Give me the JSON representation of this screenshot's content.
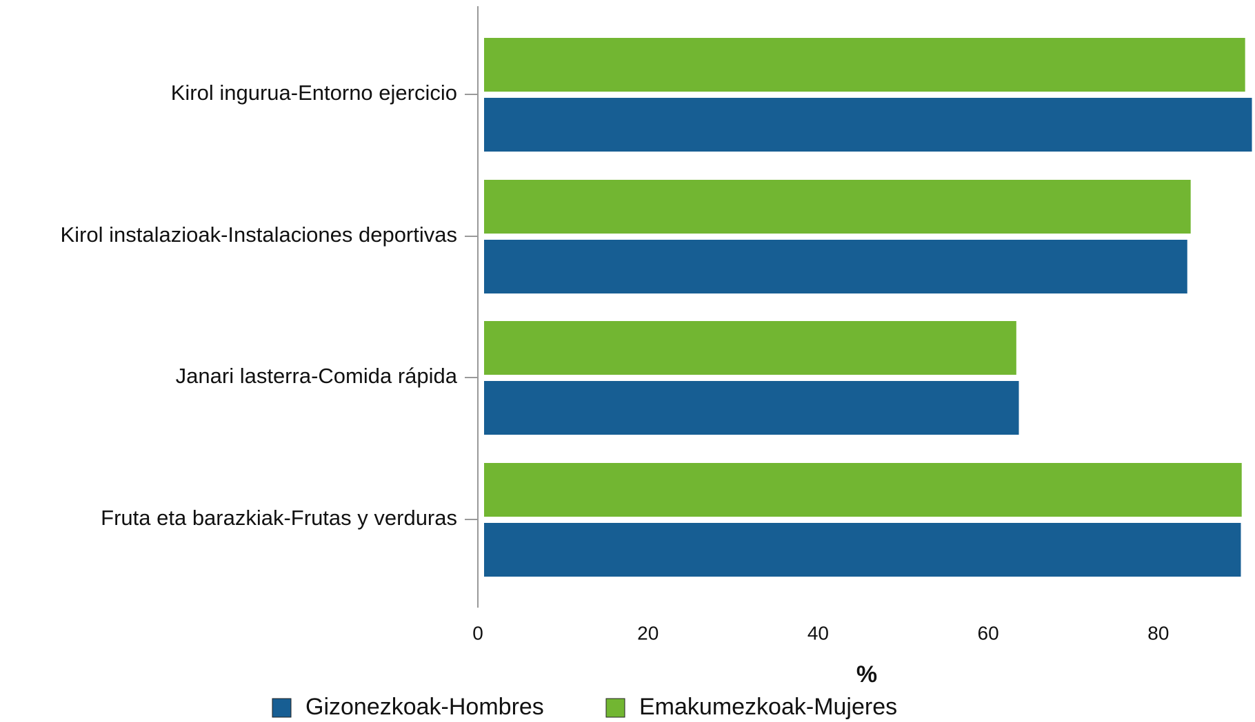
{
  "chart_data": {
    "type": "barh",
    "categories": [
      "Kirol ingurua-Entorno ejercicio",
      "Kirol instalazioak-Instalaciones deportivas",
      "Janari lasterra-Comida rápida",
      "Fruta eta barazkiak-Frutas y verduras"
    ],
    "series": [
      {
        "name": "Emakumezkoak-Mujeres",
        "color": "#72b632",
        "values": [
          90.2,
          83.8,
          63.3,
          89.8
        ]
      },
      {
        "name": "Gizonezkoak-Hombres",
        "color": "#175e93",
        "values": [
          91.0,
          83.4,
          63.6,
          89.7
        ]
      }
    ],
    "legend_order": [
      "Gizonezkoak-Hombres",
      "Emakumezkoak-Mujeres"
    ],
    "xlabel": "%",
    "xlim": [
      0,
      91.2
    ],
    "xticks": [
      0,
      20,
      40,
      60,
      80
    ]
  }
}
